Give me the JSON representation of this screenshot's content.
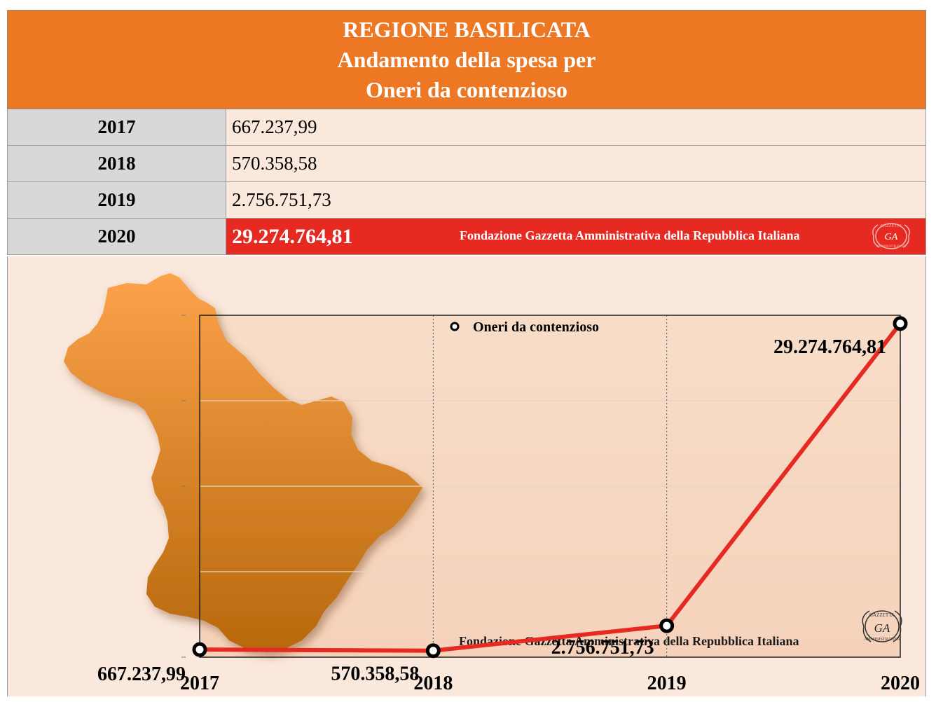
{
  "header": {
    "line1": "REGIONE BASILICATA",
    "line2": "Andamento della spesa per",
    "line3": "Oneri da contenzioso"
  },
  "table": {
    "rows": [
      {
        "year": "2017",
        "value": "667.237,99"
      },
      {
        "year": "2018",
        "value": "570.358,58"
      },
      {
        "year": "2019",
        "value": "2.756.751,73"
      },
      {
        "year": "2020",
        "value": "29.274.764,81"
      }
    ],
    "foundation_text": "Fondazione Gazzetta Amministrativa della Repubblica Italiana"
  },
  "seal": {
    "top_text": "GAZZETTA",
    "center_text": "GA",
    "bottom_text": "AMMINISTRATIVA"
  },
  "colors": {
    "header": "#ee7724",
    "highlight": "#e62a22",
    "panel": "#fbe8dc",
    "line": "#e62a22"
  },
  "chart_data": {
    "type": "line",
    "categories": [
      "2017",
      "2018",
      "2019",
      "2020"
    ],
    "series": [
      {
        "name": "Oneri da contenzioso",
        "values": [
          667237.99,
          570358.58,
          2756751.73,
          29274764.81
        ],
        "labels": [
          "667.237,99",
          "570.358,58",
          "2.756.751,73",
          "29.274.764,81"
        ]
      }
    ],
    "ylim": [
      0,
      30000000
    ],
    "grid": true,
    "legend": "top-center",
    "watermark": "Fondazione Gazzetta Amministrativa della Repubblica Italiana"
  }
}
